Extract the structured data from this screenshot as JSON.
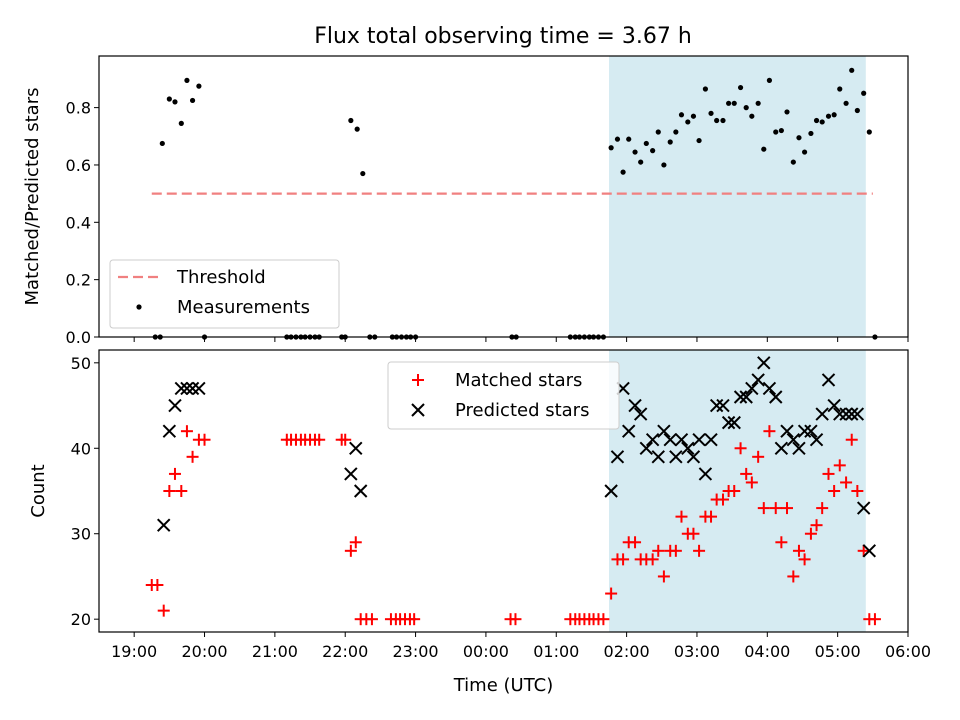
{
  "title": "Flux total observing time = 3.67 h",
  "colors": {
    "threshold": "#f08080",
    "matched": "#ff0000",
    "predicted": "#000000",
    "measurements": "#000000",
    "observing_span": "#add8e6"
  },
  "chart_data": [
    {
      "type": "scatter",
      "panel": "top",
      "ylabel": "Matched/Predicted stars",
      "ylim": [
        0,
        0.98
      ],
      "yticks": [
        0.0,
        0.2,
        0.4,
        0.6,
        0.8
      ],
      "ytick_labels": [
        "0.0",
        "0.2",
        "0.4",
        "0.6",
        "0.8"
      ],
      "xlim_hours": [
        -5.5,
        6.0
      ],
      "observing_span_hours": [
        1.75,
        5.4
      ],
      "threshold": {
        "name": "Threshold",
        "value": 0.5,
        "x_hours": [
          -4.75,
          5.5
        ]
      },
      "legend": {
        "location": "lower-left",
        "entries": [
          "Threshold",
          "Measurements"
        ]
      },
      "series": [
        {
          "name": "Measurements",
          "points": [
            [
              -4.7,
              0
            ],
            [
              -4.63,
              0
            ],
            [
              -4.6,
              0.675
            ],
            [
              -4.5,
              0.83
            ],
            [
              -4.42,
              0.82
            ],
            [
              -4.33,
              0.745
            ],
            [
              -4.25,
              0.895
            ],
            [
              -4.17,
              0.825
            ],
            [
              -4.08,
              0.875
            ],
            [
              -4.0,
              0
            ],
            [
              -2.83,
              0
            ],
            [
              -2.77,
              0
            ],
            [
              -2.7,
              0
            ],
            [
              -2.63,
              0
            ],
            [
              -2.57,
              0
            ],
            [
              -2.5,
              0
            ],
            [
              -2.43,
              0
            ],
            [
              -2.37,
              0
            ],
            [
              -2.05,
              0
            ],
            [
              -2.0,
              0
            ],
            [
              -1.92,
              0.755
            ],
            [
              -1.83,
              0.725
            ],
            [
              -1.75,
              0.57
            ],
            [
              -1.65,
              0
            ],
            [
              -1.58,
              0
            ],
            [
              -1.33,
              0
            ],
            [
              -1.27,
              0
            ],
            [
              -1.2,
              0
            ],
            [
              -1.13,
              0
            ],
            [
              -1.07,
              0
            ],
            [
              -1.0,
              0
            ],
            [
              0.37,
              0
            ],
            [
              0.43,
              0
            ],
            [
              1.2,
              0
            ],
            [
              1.27,
              0
            ],
            [
              1.33,
              0
            ],
            [
              1.4,
              0
            ],
            [
              1.47,
              0
            ],
            [
              1.53,
              0
            ],
            [
              1.6,
              0
            ],
            [
              1.67,
              0
            ],
            [
              1.78,
              0.66
            ],
            [
              1.87,
              0.69
            ],
            [
              1.95,
              0.575
            ],
            [
              2.03,
              0.69
            ],
            [
              2.12,
              0.645
            ],
            [
              2.2,
              0.61
            ],
            [
              2.28,
              0.675
            ],
            [
              2.37,
              0.65
            ],
            [
              2.45,
              0.715
            ],
            [
              2.53,
              0.6
            ],
            [
              2.62,
              0.68
            ],
            [
              2.7,
              0.715
            ],
            [
              2.78,
              0.775
            ],
            [
              2.87,
              0.75
            ],
            [
              2.95,
              0.77
            ],
            [
              3.03,
              0.685
            ],
            [
              3.12,
              0.865
            ],
            [
              3.2,
              0.78
            ],
            [
              3.28,
              0.755
            ],
            [
              3.37,
              0.755
            ],
            [
              3.45,
              0.815
            ],
            [
              3.53,
              0.815
            ],
            [
              3.62,
              0.87
            ],
            [
              3.7,
              0.8
            ],
            [
              3.78,
              0.77
            ],
            [
              3.87,
              0.815
            ],
            [
              3.95,
              0.655
            ],
            [
              4.03,
              0.895
            ],
            [
              4.12,
              0.715
            ],
            [
              4.2,
              0.72
            ],
            [
              4.28,
              0.785
            ],
            [
              4.37,
              0.61
            ],
            [
              4.45,
              0.695
            ],
            [
              4.53,
              0.645
            ],
            [
              4.62,
              0.71
            ],
            [
              4.7,
              0.755
            ],
            [
              4.78,
              0.75
            ],
            [
              4.87,
              0.77
            ],
            [
              4.95,
              0.775
            ],
            [
              5.03,
              0.865
            ],
            [
              5.12,
              0.815
            ],
            [
              5.2,
              0.93
            ],
            [
              5.28,
              0.79
            ],
            [
              5.37,
              0.85
            ],
            [
              5.45,
              0.715
            ],
            [
              5.53,
              0
            ]
          ]
        }
      ]
    },
    {
      "type": "scatter",
      "panel": "bottom",
      "ylabel": "Count",
      "xlabel": "Time (UTC)",
      "ylim": [
        18.5,
        51.5
      ],
      "yticks": [
        20,
        30,
        40,
        50
      ],
      "ytick_labels": [
        "20",
        "30",
        "40",
        "50"
      ],
      "xlim_hours": [
        -5.5,
        6.0
      ],
      "xticks_hours": [
        -5,
        -4,
        -3,
        -2,
        -1,
        0,
        1,
        2,
        3,
        4,
        5,
        6
      ],
      "xtick_labels": [
        "19:00",
        "20:00",
        "21:00",
        "22:00",
        "23:00",
        "00:00",
        "01:00",
        "02:00",
        "03:00",
        "04:00",
        "05:00",
        "06:00"
      ],
      "observing_span_hours": [
        1.75,
        5.4
      ],
      "legend": {
        "location": "upper-center",
        "entries": [
          "Matched stars",
          "Predicted stars"
        ]
      },
      "series": [
        {
          "name": "Matched stars",
          "points": [
            [
              -4.75,
              24
            ],
            [
              -4.67,
              24
            ],
            [
              -4.58,
              21
            ],
            [
              -4.5,
              35
            ],
            [
              -4.42,
              37
            ],
            [
              -4.33,
              35
            ],
            [
              -4.25,
              42
            ],
            [
              -4.17,
              39
            ],
            [
              -4.08,
              41
            ],
            [
              -4.0,
              41
            ],
            [
              -2.83,
              41
            ],
            [
              -2.77,
              41
            ],
            [
              -2.7,
              41
            ],
            [
              -2.63,
              41
            ],
            [
              -2.57,
              41
            ],
            [
              -2.5,
              41
            ],
            [
              -2.43,
              41
            ],
            [
              -2.37,
              41
            ],
            [
              -2.05,
              41
            ],
            [
              -2.0,
              41
            ],
            [
              -1.92,
              28
            ],
            [
              -1.85,
              29
            ],
            [
              -1.78,
              20
            ],
            [
              -1.7,
              20
            ],
            [
              -1.62,
              20
            ],
            [
              -1.35,
              20
            ],
            [
              -1.28,
              20
            ],
            [
              -1.22,
              20
            ],
            [
              -1.15,
              20
            ],
            [
              -1.08,
              20
            ],
            [
              -1.02,
              20
            ],
            [
              0.35,
              20
            ],
            [
              0.42,
              20
            ],
            [
              1.2,
              20
            ],
            [
              1.27,
              20
            ],
            [
              1.33,
              20
            ],
            [
              1.4,
              20
            ],
            [
              1.47,
              20
            ],
            [
              1.53,
              20
            ],
            [
              1.6,
              20
            ],
            [
              1.67,
              20
            ],
            [
              1.78,
              23
            ],
            [
              1.87,
              27
            ],
            [
              1.95,
              27
            ],
            [
              2.03,
              29
            ],
            [
              2.12,
              29
            ],
            [
              2.2,
              27
            ],
            [
              2.28,
              27
            ],
            [
              2.37,
              27
            ],
            [
              2.45,
              28
            ],
            [
              2.53,
              25
            ],
            [
              2.62,
              28
            ],
            [
              2.7,
              28
            ],
            [
              2.78,
              32
            ],
            [
              2.87,
              30
            ],
            [
              2.95,
              30
            ],
            [
              3.03,
              28
            ],
            [
              3.12,
              32
            ],
            [
              3.2,
              32
            ],
            [
              3.28,
              34
            ],
            [
              3.37,
              34
            ],
            [
              3.45,
              35
            ],
            [
              3.53,
              35
            ],
            [
              3.62,
              40
            ],
            [
              3.7,
              37
            ],
            [
              3.78,
              36
            ],
            [
              3.87,
              39
            ],
            [
              3.95,
              33
            ],
            [
              4.03,
              42
            ],
            [
              4.12,
              33
            ],
            [
              4.2,
              29
            ],
            [
              4.28,
              33
            ],
            [
              4.37,
              25
            ],
            [
              4.45,
              28
            ],
            [
              4.53,
              27
            ],
            [
              4.62,
              30
            ],
            [
              4.7,
              31
            ],
            [
              4.78,
              33
            ],
            [
              4.87,
              37
            ],
            [
              4.95,
              35
            ],
            [
              5.03,
              38
            ],
            [
              5.12,
              36
            ],
            [
              5.2,
              41
            ],
            [
              5.28,
              35
            ],
            [
              5.37,
              28
            ],
            [
              5.45,
              20
            ],
            [
              5.53,
              20
            ]
          ]
        },
        {
          "name": "Predicted stars",
          "points": [
            [
              -4.58,
              31
            ],
            [
              -4.5,
              42
            ],
            [
              -4.42,
              45
            ],
            [
              -4.33,
              47
            ],
            [
              -4.25,
              47
            ],
            [
              -4.17,
              47
            ],
            [
              -4.08,
              47
            ],
            [
              -1.92,
              37
            ],
            [
              -1.85,
              40
            ],
            [
              -1.78,
              35
            ],
            [
              1.78,
              35
            ],
            [
              1.87,
              39
            ],
            [
              1.95,
              47
            ],
            [
              2.03,
              42
            ],
            [
              2.12,
              45
            ],
            [
              2.2,
              44
            ],
            [
              2.28,
              40
            ],
            [
              2.37,
              41
            ],
            [
              2.45,
              39
            ],
            [
              2.53,
              42
            ],
            [
              2.62,
              41
            ],
            [
              2.7,
              39
            ],
            [
              2.78,
              41
            ],
            [
              2.87,
              40
            ],
            [
              2.95,
              39
            ],
            [
              3.03,
              41
            ],
            [
              3.12,
              37
            ],
            [
              3.2,
              41
            ],
            [
              3.28,
              45
            ],
            [
              3.37,
              45
            ],
            [
              3.45,
              43
            ],
            [
              3.53,
              43
            ],
            [
              3.62,
              46
            ],
            [
              3.7,
              46
            ],
            [
              3.78,
              47
            ],
            [
              3.87,
              48
            ],
            [
              3.95,
              50
            ],
            [
              4.03,
              47
            ],
            [
              4.12,
              46
            ],
            [
              4.2,
              40
            ],
            [
              4.28,
              42
            ],
            [
              4.37,
              41
            ],
            [
              4.45,
              40
            ],
            [
              4.53,
              42
            ],
            [
              4.62,
              42
            ],
            [
              4.7,
              41
            ],
            [
              4.78,
              44
            ],
            [
              4.87,
              48
            ],
            [
              4.95,
              45
            ],
            [
              5.03,
              44
            ],
            [
              5.12,
              44
            ],
            [
              5.2,
              44
            ],
            [
              5.28,
              44
            ],
            [
              5.37,
              33
            ],
            [
              5.45,
              28
            ]
          ]
        }
      ]
    }
  ]
}
